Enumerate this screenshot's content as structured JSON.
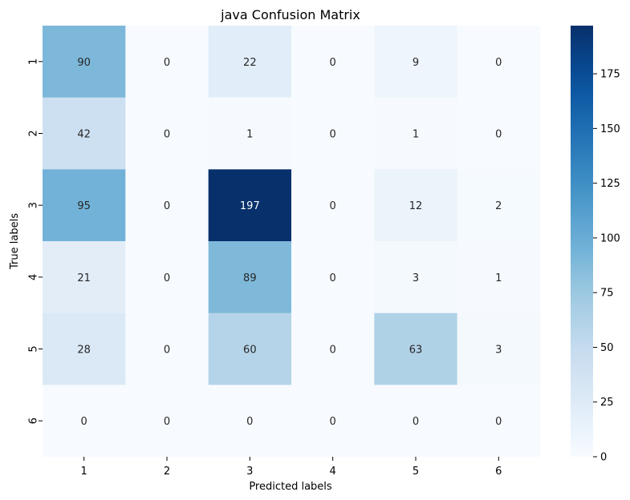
{
  "chart_data": {
    "type": "heatmap",
    "title": "java Confusion Matrix",
    "xlabel": "Predicted labels",
    "ylabel": "True labels",
    "x_categories": [
      "1",
      "2",
      "3",
      "4",
      "5",
      "6"
    ],
    "y_categories": [
      "1",
      "2",
      "3",
      "4",
      "5",
      "6"
    ],
    "matrix": [
      [
        90,
        0,
        22,
        0,
        9,
        0
      ],
      [
        42,
        0,
        1,
        0,
        1,
        0
      ],
      [
        95,
        0,
        197,
        0,
        12,
        2
      ],
      [
        21,
        0,
        89,
        0,
        3,
        1
      ],
      [
        28,
        0,
        60,
        0,
        63,
        3
      ],
      [
        0,
        0,
        0,
        0,
        0,
        0
      ]
    ],
    "value_range": [
      0,
      197
    ],
    "colormap": "Blues",
    "colorbar_ticks": [
      0,
      25,
      50,
      75,
      100,
      125,
      150,
      175
    ],
    "grid": false
  }
}
